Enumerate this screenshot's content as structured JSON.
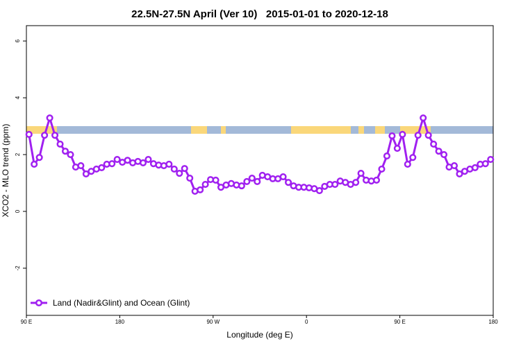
{
  "chart_data": {
    "type": "line",
    "title": "22.5N-27.5N April (Ver 10)   2015-01-01 to 2020-12-18",
    "xlabel": "Longitude (deg E)",
    "ylabel": "XCO2 - MLO trend (ppm)",
    "x": [
      92.5,
      97.5,
      102.5,
      107.5,
      112.5,
      117.5,
      122.5,
      127.5,
      132.5,
      137.5,
      142.5,
      147.5,
      152.5,
      157.5,
      162.5,
      167.5,
      172.5,
      177.5,
      182.5,
      187.5,
      192.5,
      197.5,
      202.5,
      207.5,
      212.5,
      217.5,
      222.5,
      227.5,
      232.5,
      237.5,
      242.5,
      247.5,
      252.5,
      257.5,
      262.5,
      267.5,
      272.5,
      277.5,
      282.5,
      287.5,
      292.5,
      297.5,
      302.5,
      307.5,
      312.5,
      317.5,
      322.5,
      327.5,
      332.5,
      337.5,
      342.5,
      347.5,
      352.5,
      357.5,
      362.5,
      367.5,
      372.5,
      377.5,
      382.5,
      387.5,
      392.5,
      397.5,
      402.5,
      407.5,
      412.5,
      417.5,
      422.5,
      427.5,
      432.5,
      437.5,
      442.5,
      447.5,
      452.5,
      457.5,
      462.5,
      467.5,
      472.5,
      477.5,
      482.5,
      487.5,
      492.5,
      497.5,
      502.5,
      507.5,
      512.5,
      517.5,
      522.5,
      527.5,
      532.5,
      537.5
    ],
    "series": [
      {
        "name": "Land (Nadir&Glint) and Ocean (Glint)",
        "color": "#a020f0",
        "values": [
          2.71,
          1.66,
          1.9,
          2.68,
          3.29,
          2.68,
          2.37,
          2.12,
          2.0,
          1.56,
          1.61,
          1.32,
          1.41,
          1.49,
          1.54,
          1.66,
          1.68,
          1.83,
          1.73,
          1.8,
          1.71,
          1.76,
          1.71,
          1.83,
          1.68,
          1.63,
          1.61,
          1.66,
          1.49,
          1.34,
          1.51,
          1.17,
          0.71,
          0.76,
          0.95,
          1.12,
          1.1,
          0.85,
          0.93,
          0.98,
          0.93,
          0.9,
          1.05,
          1.17,
          1.05,
          1.27,
          1.22,
          1.15,
          1.15,
          1.22,
          1.02,
          0.9,
          0.85,
          0.85,
          0.83,
          0.8,
          0.73,
          0.88,
          0.95,
          0.95,
          1.07,
          1.02,
          0.95,
          1.02,
          1.34,
          1.1,
          1.07,
          1.1,
          1.49,
          1.95,
          2.66,
          2.22,
          2.71,
          1.66,
          1.9,
          2.68,
          3.29,
          2.68,
          2.37,
          2.12,
          2.0,
          1.56,
          1.61,
          1.32,
          1.41,
          1.49,
          1.54,
          1.66,
          1.68,
          1.83
        ]
      }
    ],
    "xlim": [
      90,
      540
    ],
    "xticks": [
      {
        "value": 90,
        "label": "90 E"
      },
      180,
      {
        "value": 270,
        "label": "90 W"
      },
      0,
      {
        "value": 450,
        "label": "90 E"
      },
      {
        "value": 540,
        "label": "180"
      }
    ],
    "ylim": [
      -3.66,
      6.54
    ],
    "yticks": [
      -2,
      0,
      2,
      4,
      6
    ],
    "legend": "bottom-left"
  }
}
